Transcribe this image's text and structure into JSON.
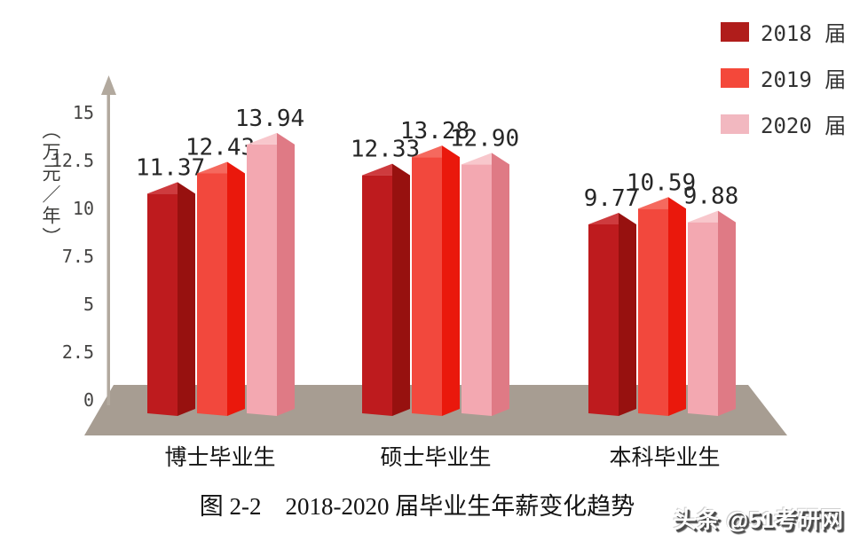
{
  "caption": {
    "text": "图 2-2　2018-2020 届毕业生年薪变化趋势"
  },
  "watermark": {
    "text": "头条 @51考研网"
  },
  "y_axis": {
    "unit_label": "（万元／年）",
    "ticks": [
      "15",
      "12.5",
      "10",
      "7.5",
      "5",
      "2.5",
      "0"
    ]
  },
  "legend": {
    "items": [
      {
        "label": "2018 届",
        "color": "#b01d1b"
      },
      {
        "label": "2019 届",
        "color": "#f4483a"
      },
      {
        "label": "2020 届",
        "color": "#f2b8c0"
      }
    ]
  },
  "chart_data": {
    "type": "bar",
    "title": "图 2-2 2018-2020 届毕业生年薪变化趋势",
    "categories": [
      "博士毕业生",
      "硕士毕业生",
      "本科毕业生"
    ],
    "series": [
      {
        "name": "2018 届",
        "values": [
          11.37,
          12.33,
          9.77
        ],
        "front_color": "#be1b1e",
        "side_color": "#97110f",
        "roof_color": "#ce3b3e"
      },
      {
        "name": "2019 届",
        "values": [
          12.43,
          13.28,
          10.59
        ],
        "front_color": "#f2483d",
        "side_color": "#ea180c",
        "roof_color": "#f5695e"
      },
      {
        "name": "2020 届",
        "values": [
          13.94,
          12.9,
          9.88
        ],
        "front_color": "#f3a8b1",
        "side_color": "#df7a85",
        "roof_color": "#f8c7cc"
      }
    ],
    "ylabel": "（万元／年）",
    "ylim": [
      0,
      15
    ],
    "yticks": [
      0,
      2.5,
      5,
      7.5,
      10,
      12.5,
      15
    ],
    "grid": false,
    "legend_position": "top-right",
    "platform_color": "#a79d92",
    "axis_color": "#b2a99e"
  }
}
